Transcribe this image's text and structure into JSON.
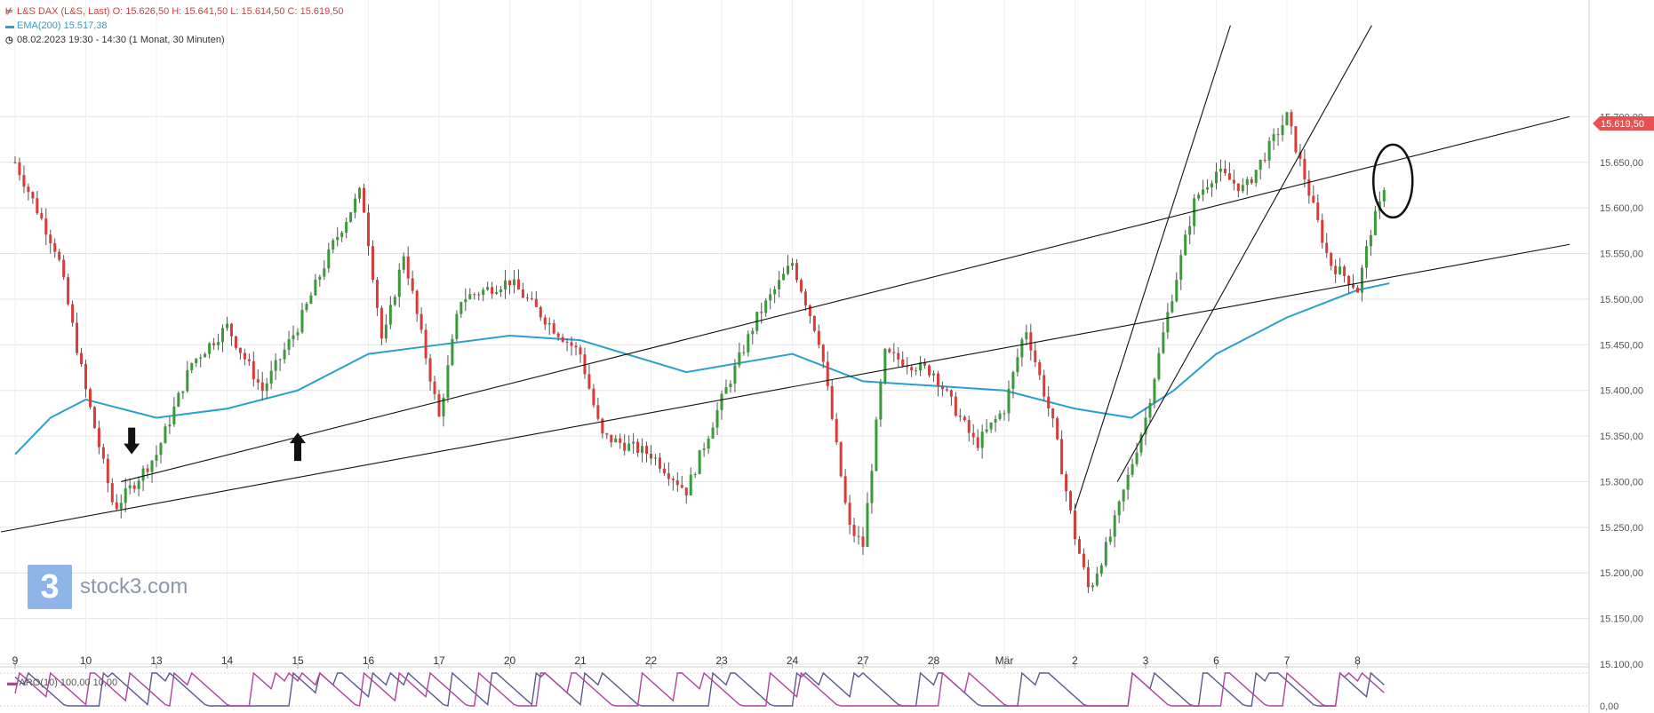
{
  "header": {
    "line1": "L&S DAX (L&S, Last)  O: 15.626,50  H: 15.641,50  L: 15.614,50  C: 15.619,50",
    "line2": "EMA(200)  15.517,38",
    "line3": "08.02.2023 19:30 - 14:30   (1 Monat, 30 Minuten)"
  },
  "colors": {
    "up": "#3a9a3a",
    "down": "#d93b3b",
    "ema": "#2a9fd0",
    "price_tag": "#e8514f",
    "aro_up": "#5a5a8c",
    "aro_down": "#b0449a",
    "trend_line": "#111111"
  },
  "logo": {
    "text": "stock3.com",
    "glyph": "3"
  },
  "price_tag": "15.619,50",
  "aro_label": "ARO(10)  100,00  10,00",
  "icons": [
    "up-arrow-icon",
    "down-arrow-icon",
    "clock-icon",
    "ellipse-annotation"
  ],
  "chart_data": {
    "type": "candlestick",
    "title": "L&S DAX (L&S, Last)",
    "ylim": [
      15100,
      15750
    ],
    "y_ticks": [
      {
        "v": 15100,
        "label": "15.100,00"
      },
      {
        "v": 15150,
        "label": "15.150,00"
      },
      {
        "v": 15200,
        "label": "15.200,00"
      },
      {
        "v": 15250,
        "label": "15.250,00"
      },
      {
        "v": 15300,
        "label": "15.300,00"
      },
      {
        "v": 15350,
        "label": "15.350,00"
      },
      {
        "v": 15400,
        "label": "15.400,00"
      },
      {
        "v": 15450,
        "label": "15.450,00"
      },
      {
        "v": 15500,
        "label": "15.500,00"
      },
      {
        "v": 15550,
        "label": "15.550,00"
      },
      {
        "v": 15600,
        "label": "15.600,00"
      },
      {
        "v": 15650,
        "label": "15.650,00"
      },
      {
        "v": 15700,
        "label": "15.700,00"
      }
    ],
    "x_days": [
      "9",
      "10",
      "13",
      "14",
      "15",
      "16",
      "17",
      "20",
      "21",
      "22",
      "23",
      "24",
      "27",
      "28",
      "Mär",
      "2",
      "3",
      "6",
      "7",
      "8"
    ],
    "last_close": 15619.5,
    "open": 15626.5,
    "high": 15641.5,
    "low": 15614.5,
    "ema200_last": 15517.38,
    "key_points": [
      {
        "day": 0,
        "v": 15650
      },
      {
        "day": 0.6,
        "v": 15550
      },
      {
        "day": 1,
        "v": 15400
      },
      {
        "day": 1.4,
        "v": 15270
      },
      {
        "day": 2,
        "v": 15330
      },
      {
        "day": 2.5,
        "v": 15430
      },
      {
        "day": 3,
        "v": 15470
      },
      {
        "day": 3.5,
        "v": 15400
      },
      {
        "day": 4,
        "v": 15470
      },
      {
        "day": 4.5,
        "v": 15560
      },
      {
        "day": 4.9,
        "v": 15620
      },
      {
        "day": 5.2,
        "v": 15450
      },
      {
        "day": 5.5,
        "v": 15550
      },
      {
        "day": 6,
        "v": 15370
      },
      {
        "day": 6.3,
        "v": 15500
      },
      {
        "day": 7,
        "v": 15520
      },
      {
        "day": 7.6,
        "v": 15470
      },
      {
        "day": 8,
        "v": 15440
      },
      {
        "day": 8.3,
        "v": 15350
      },
      {
        "day": 9,
        "v": 15330
      },
      {
        "day": 9.5,
        "v": 15290
      },
      {
        "day": 10,
        "v": 15390
      },
      {
        "day": 10.5,
        "v": 15480
      },
      {
        "day": 11,
        "v": 15540
      },
      {
        "day": 11.4,
        "v": 15450
      },
      {
        "day": 11.8,
        "v": 15250
      },
      {
        "day": 12,
        "v": 15230
      },
      {
        "day": 12.3,
        "v": 15440
      },
      {
        "day": 13,
        "v": 15420
      },
      {
        "day": 13.6,
        "v": 15340
      },
      {
        "day": 14,
        "v": 15380
      },
      {
        "day": 14.3,
        "v": 15470
      },
      {
        "day": 14.7,
        "v": 15360
      },
      {
        "day": 15,
        "v": 15240
      },
      {
        "day": 15.2,
        "v": 15180
      },
      {
        "day": 15.5,
        "v": 15240
      },
      {
        "day": 16,
        "v": 15370
      },
      {
        "day": 16.3,
        "v": 15480
      },
      {
        "day": 16.7,
        "v": 15610
      },
      {
        "day": 17,
        "v": 15640
      },
      {
        "day": 17.4,
        "v": 15620
      },
      {
        "day": 18,
        "v": 15700
      },
      {
        "day": 18.3,
        "v": 15620
      },
      {
        "day": 18.6,
        "v": 15540
      },
      {
        "day": 18.9,
        "v": 15520
      },
      {
        "day": 19,
        "v": 15510
      },
      {
        "day": 19.2,
        "v": 15580
      },
      {
        "day": 19.4,
        "v": 15619.5
      }
    ],
    "ema_points": [
      {
        "day": 0,
        "v": 15330
      },
      {
        "day": 0.5,
        "v": 15370
      },
      {
        "day": 1,
        "v": 15390
      },
      {
        "day": 1.5,
        "v": 15380
      },
      {
        "day": 2,
        "v": 15370
      },
      {
        "day": 3,
        "v": 15380
      },
      {
        "day": 4,
        "v": 15400
      },
      {
        "day": 5,
        "v": 15440
      },
      {
        "day": 6,
        "v": 15450
      },
      {
        "day": 7,
        "v": 15460
      },
      {
        "day": 8,
        "v": 15455
      },
      {
        "day": 9.5,
        "v": 15420
      },
      {
        "day": 11,
        "v": 15440
      },
      {
        "day": 12,
        "v": 15410
      },
      {
        "day": 13,
        "v": 15405
      },
      {
        "day": 14,
        "v": 15400
      },
      {
        "day": 15,
        "v": 15380
      },
      {
        "day": 15.8,
        "v": 15370
      },
      {
        "day": 16.4,
        "v": 15400
      },
      {
        "day": 17,
        "v": 15440
      },
      {
        "day": 18,
        "v": 15480
      },
      {
        "day": 19,
        "v": 15510
      },
      {
        "day": 19.45,
        "v": 15517.38
      }
    ],
    "trend_lines": [
      {
        "d1": -0.2,
        "v1": 15245,
        "d2": 22,
        "v2": 15560
      },
      {
        "d1": 1.5,
        "v1": 15300,
        "d2": 22,
        "v2": 15700
      },
      {
        "d1": 15,
        "v1": 15270,
        "d2": 17.2,
        "v2": 15800
      },
      {
        "d1": 15.6,
        "v1": 15300,
        "d2": 19.2,
        "v2": 15800
      }
    ],
    "annotations": [
      {
        "type": "arrow-down",
        "day": 1.65,
        "v": 15330
      },
      {
        "type": "arrow-up",
        "day": 4.0,
        "v": 15350
      },
      {
        "type": "ellipse",
        "day": 19.5,
        "v": 15610
      }
    ],
    "indicator": {
      "name": "ARO(10)",
      "up": 100.0,
      "down": 10.0
    }
  }
}
